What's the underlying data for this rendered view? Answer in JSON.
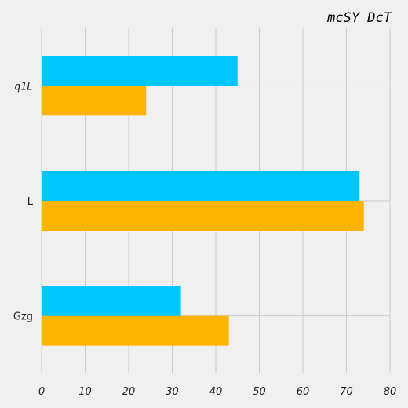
{
  "chart_data": {
    "type": "bar",
    "orientation": "horizontal",
    "title": "mcSY DcT",
    "xlabel": "",
    "ylabel": "",
    "categories": [
      "Gzg",
      "L",
      "q1L"
    ],
    "category_label_styles": [
      "normal",
      "normal",
      "italic"
    ],
    "xlim": [
      0,
      80
    ],
    "x_ticks": [
      0,
      10,
      20,
      30,
      40,
      50,
      60,
      70,
      80
    ],
    "grid": true,
    "legend": "none",
    "series": [
      {
        "color": "#ffb400",
        "values": [
          43,
          74,
          24
        ]
      },
      {
        "color": "#00c5ff",
        "values": [
          32,
          73,
          45
        ]
      }
    ]
  }
}
